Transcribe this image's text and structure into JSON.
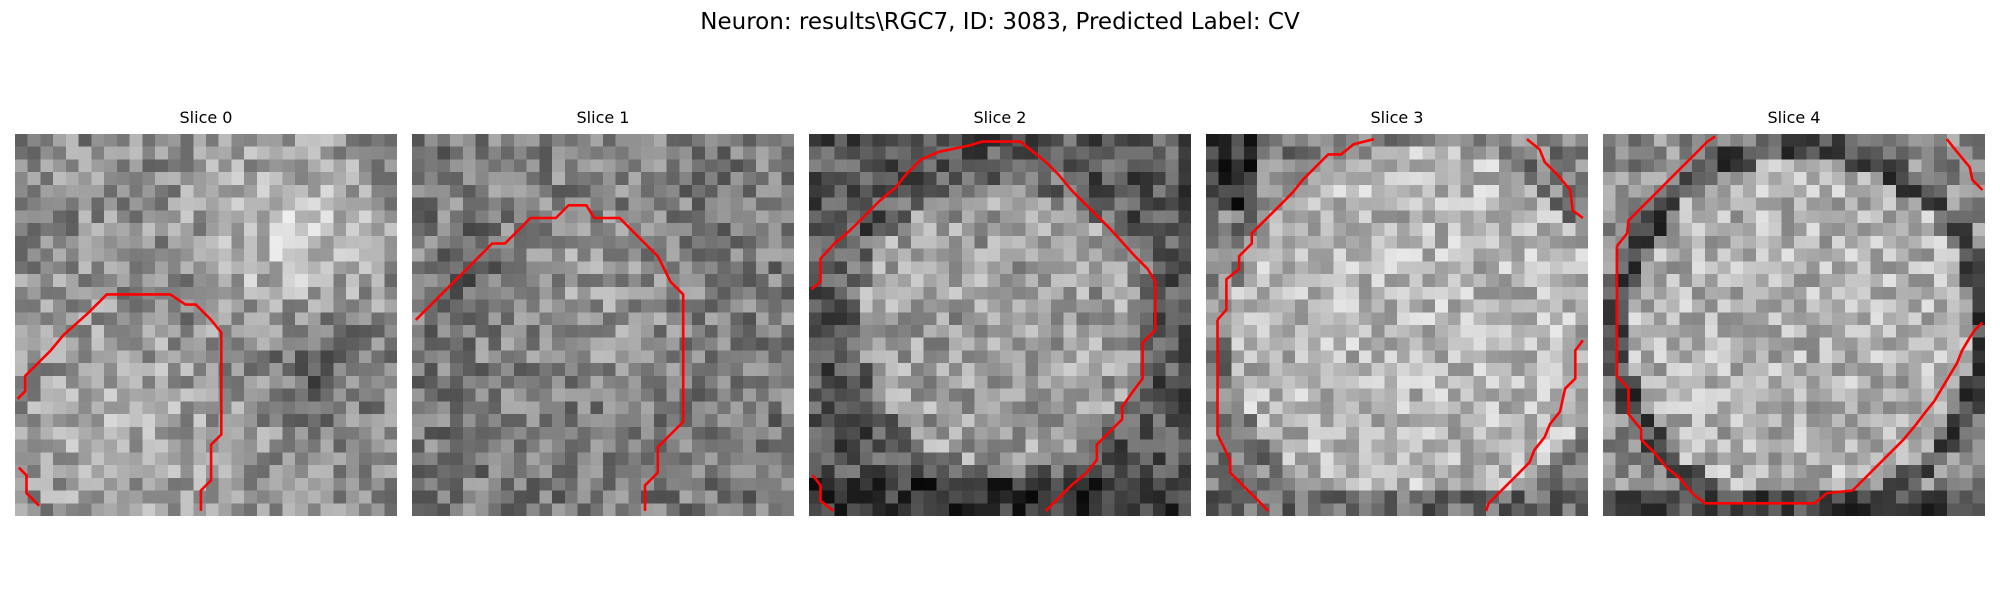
{
  "figure": {
    "title": "Neuron: results\\RGC7, ID: 3083, Predicted Label: CV"
  },
  "colors": {
    "contour": "#ff0000",
    "background": "#ffffff",
    "colormap": "gray"
  },
  "slices": [
    {
      "title": "Slice 0"
    },
    {
      "title": "Slice 1"
    },
    {
      "title": "Slice 2"
    },
    {
      "title": "Slice 3"
    },
    {
      "title": "Slice 4"
    }
  ]
}
